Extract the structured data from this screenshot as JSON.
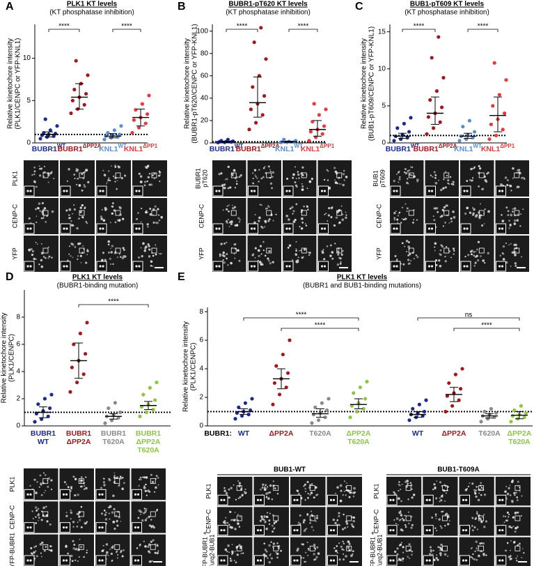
{
  "panels": [
    {
      "letter": "A",
      "title": "PLK1 KT levels",
      "subtitle": "(KT phosphatase inhibition)",
      "ylabel": [
        "Relative kinetochore intensity",
        "(PLK1/CENPC or YFP-KNL1)"
      ],
      "ylim": [
        0,
        14
      ],
      "yticks": [
        0,
        5,
        10
      ],
      "threshold": 1,
      "groups": [
        {
          "name": "BUBR1",
          "sup": "WT",
          "color": "#1b2a8c",
          "mean": 1.0,
          "sd": [
            0.7,
            1.3
          ],
          "points": [
            0.5,
            0.7,
            0.8,
            0.9,
            1.0,
            1.1,
            1.2,
            1.5,
            2.0,
            2.8
          ]
        },
        {
          "name": "BUBR1",
          "sup": "ΔPP2A",
          "color": "#a3181e",
          "mean": 5.4,
          "sd": [
            4.0,
            7.0
          ],
          "points": [
            3.5,
            4.0,
            4.5,
            5.0,
            5.4,
            5.8,
            6.3,
            7.0,
            8.0,
            9.7
          ]
        },
        {
          "name": "KNL1",
          "sup": "WT",
          "color": "#5b8ed1",
          "mean": 0.8,
          "sd": [
            0.6,
            1.1
          ],
          "points": [
            0.4,
            0.6,
            0.7,
            0.8,
            0.9,
            1.0,
            1.2,
            1.5,
            2.0
          ]
        },
        {
          "name": "KNL1",
          "sup": "ΔPP1",
          "color": "#e8383b",
          "mean": 3.0,
          "sd": [
            2.0,
            4.0
          ],
          "points": [
            1.2,
            1.8,
            2.3,
            2.7,
            3.0,
            3.4,
            3.9,
            4.6,
            5.6
          ]
        }
      ],
      "significance": [
        {
          "from": 0,
          "to": 1,
          "label": "****"
        },
        {
          "from": 2,
          "to": 3,
          "label": "****"
        }
      ],
      "image_rows": [
        [
          "PLK1"
        ],
        [
          "CENP-C"
        ],
        [
          "YFP"
        ]
      ]
    },
    {
      "letter": "B",
      "title": "BUBR1-pT620 KT levels",
      "subtitle": "(KT phosphatase inhibition)",
      "ylabel": [
        "Relative kinetochore intensity",
        "(BUBR1-pT620/CENPC or YFP-KNL1)"
      ],
      "ylim": [
        0,
        106
      ],
      "yticks": [
        0,
        20,
        40,
        60,
        80,
        100
      ],
      "threshold": 1,
      "groups": [
        {
          "name": "BUBR1",
          "sup": "WT",
          "color": "#1b2a8c",
          "mean": 1,
          "sd": [
            0.5,
            1.5
          ],
          "points": [
            0.3,
            0.5,
            0.8,
            1,
            1.2,
            1.5,
            2,
            3
          ]
        },
        {
          "name": "BUBR1",
          "sup": "ΔPP2A",
          "color": "#a3181e",
          "mean": 36,
          "sd": [
            23,
            59
          ],
          "points": [
            12,
            18,
            25,
            30,
            35,
            42,
            50,
            60,
            75,
            90,
            103
          ]
        },
        {
          "name": "KNL1",
          "sup": "WT",
          "color": "#5b8ed1",
          "mean": 1,
          "sd": [
            0.5,
            1.5
          ],
          "points": [
            0.3,
            0.5,
            0.8,
            1,
            1.3,
            2,
            3
          ]
        },
        {
          "name": "KNL1",
          "sup": "ΔPP1",
          "color": "#e8383b",
          "mean": 12,
          "sd": [
            6,
            20
          ],
          "points": [
            2,
            5,
            8,
            10,
            12,
            15,
            19,
            25,
            30,
            35
          ]
        }
      ],
      "significance": [
        {
          "from": 0,
          "to": 1,
          "label": "****"
        },
        {
          "from": 2,
          "to": 3,
          "label": "****"
        }
      ],
      "image_rows": [
        [
          "BUBR1",
          "pT620"
        ],
        [
          "CENP-C"
        ],
        [
          "YFP"
        ]
      ]
    },
    {
      "letter": "C",
      "title": "BUB1-pT609 KT levels",
      "subtitle": "(KT phosphatase inhibition)",
      "ylabel": [
        "Relative kinetochore intensity",
        "(BUB1-pT609/CENPC or YFP-KNL1)"
      ],
      "ylim": [
        0,
        16
      ],
      "yticks": [
        0,
        5,
        10,
        15
      ],
      "threshold": 1,
      "groups": [
        {
          "name": "BUBR1",
          "sup": "WT",
          "color": "#1b2a8c",
          "mean": 0.9,
          "sd": [
            0.6,
            1.3
          ],
          "points": [
            0.3,
            0.5,
            0.7,
            0.9,
            1.1,
            1.5,
            2.0,
            2.6,
            3.4
          ]
        },
        {
          "name": "BUBR1",
          "sup": "ΔPP2A",
          "color": "#a3181e",
          "mean": 4,
          "sd": [
            2.5,
            6.2
          ],
          "points": [
            1.2,
            2,
            2.8,
            3.5,
            4,
            4.8,
            5.8,
            7,
            8.8,
            11.5,
            14.3
          ]
        },
        {
          "name": "KNL1",
          "sup": "WT",
          "color": "#5b8ed1",
          "mean": 0.9,
          "sd": [
            0.6,
            1.3
          ],
          "points": [
            0.3,
            0.5,
            0.7,
            0.9,
            1.1,
            1.5,
            2.2,
            3
          ]
        },
        {
          "name": "KNL1",
          "sup": "ΔPP1",
          "color": "#e8383b",
          "mean": 3.7,
          "sd": [
            1.5,
            6.2
          ],
          "points": [
            0.5,
            1,
            1.8,
            2.5,
            3.2,
            4,
            5,
            6.5,
            8.5,
            10.8
          ]
        }
      ],
      "significance": [
        {
          "from": 0,
          "to": 1,
          "label": "****"
        },
        {
          "from": 2,
          "to": 3,
          "label": "****"
        }
      ],
      "image_rows": [
        [
          "BUB1",
          "pT609"
        ],
        [
          "CENP-C"
        ],
        [
          "YFP"
        ]
      ]
    },
    {
      "letter": "D",
      "title": "PLK1 KT levels",
      "subtitle": "(BUBR1-binding mutation)",
      "ylabel": [
        "Relative kinetochore intensity",
        "(PLK1/CENPC)"
      ],
      "ylim": [
        0,
        10
      ],
      "yticks": [
        0,
        2,
        4,
        6,
        8
      ],
      "threshold": 1,
      "groups": [
        {
          "lines": [
            "BUBR1",
            "WT"
          ],
          "color": "#1b2a8c",
          "mean": 1.0,
          "sd": [
            0.6,
            1.4
          ],
          "points": [
            0.3,
            0.5,
            0.7,
            0.9,
            1.1,
            1.3,
            1.6,
            2,
            2.3
          ]
        },
        {
          "lines": [
            "BUBR1",
            "ΔPP2A"
          ],
          "color": "#a3181e",
          "mean": 4.8,
          "sd": [
            3.5,
            6.1
          ],
          "points": [
            2.5,
            3.2,
            3.8,
            4.3,
            4.8,
            5.3,
            6,
            6.8,
            7.6
          ]
        },
        {
          "lines": [
            "BUBR1",
            "T620A"
          ],
          "color": "#8a8a8a",
          "mean": 0.7,
          "sd": [
            0.5,
            0.9
          ],
          "points": [
            0.2,
            0.4,
            0.6,
            0.7,
            0.8,
            1,
            1.3,
            1.7
          ]
        },
        {
          "lines": [
            "BUBR1",
            "ΔPP2A",
            "T620A"
          ],
          "color": "#8dc63f",
          "mean": 1.5,
          "sd": [
            1.2,
            1.8
          ],
          "points": [
            0.7,
            1,
            1.2,
            1.4,
            1.6,
            1.9,
            2.3,
            2.8,
            3.2
          ]
        }
      ],
      "significance": [
        {
          "from": 1,
          "to": 3,
          "label": "****"
        }
      ],
      "image_rows": [
        [
          "PLK1"
        ],
        [
          "CENP-C"
        ],
        [
          "YFP-BUBR1"
        ]
      ]
    },
    {
      "letter": "E",
      "title": "PLK1 KT levels",
      "subtitle": "(BUBR1 and BUB1-binding mutations)",
      "ylabel": [
        "Relative kinetochore intensity",
        "(PLK1/CENPC)"
      ],
      "ylim": [
        0,
        8.3
      ],
      "yticks": [
        0,
        2,
        4,
        6,
        8
      ],
      "threshold": 1,
      "group_prefix": "BUBR1:",
      "groups": [
        {
          "lines": [
            "WT"
          ],
          "color": "#1b2a8c",
          "mean": 1.0,
          "sd": [
            0.8,
            1.2
          ],
          "points": [
            0.5,
            0.7,
            0.8,
            0.9,
            1,
            1.1,
            1.3,
            1.6,
            1.9
          ]
        },
        {
          "lines": [
            "ΔPP2A"
          ],
          "color": "#a3181e",
          "mean": 3.3,
          "sd": [
            2.6,
            4.0
          ],
          "points": [
            1.5,
            2.2,
            2.7,
            3,
            3.3,
            3.7,
            4.2,
            5,
            6
          ]
        },
        {
          "lines": [
            "T620A"
          ],
          "color": "#8a8a8a",
          "mean": 0.85,
          "sd": [
            0.6,
            1.2
          ],
          "points": [
            0.2,
            0.4,
            0.6,
            0.8,
            0.9,
            1.1,
            1.3,
            1.6,
            1.9
          ]
        },
        {
          "lines": [
            "ΔPP2A",
            "T620A"
          ],
          "color": "#8dc63f",
          "mean": 1.5,
          "sd": [
            1.2,
            1.9
          ],
          "points": [
            0.6,
            1,
            1.2,
            1.4,
            1.6,
            1.9,
            2.3,
            2.7,
            3.1
          ]
        },
        {
          "lines": [
            "WT"
          ],
          "color": "#1b2a8c",
          "mean": 0.8,
          "sd": [
            0.6,
            1.0
          ],
          "points": [
            0.4,
            0.6,
            0.7,
            0.8,
            0.9,
            1,
            1.2,
            1.5,
            1.8
          ]
        },
        {
          "lines": [
            "ΔPP2A"
          ],
          "color": "#a3181e",
          "mean": 2.2,
          "sd": [
            1.7,
            2.7
          ],
          "points": [
            1,
            1.4,
            1.8,
            2.1,
            2.3,
            2.6,
            3,
            3.6,
            4
          ]
        },
        {
          "lines": [
            "T620A"
          ],
          "color": "#8a8a8a",
          "mean": 0.7,
          "sd": [
            0.55,
            0.85
          ],
          "points": [
            0.3,
            0.5,
            0.6,
            0.7,
            0.8,
            0.9,
            1,
            1.2
          ]
        },
        {
          "lines": [
            "ΔPP2A",
            "T620A"
          ],
          "color": "#8dc63f",
          "mean": 0.75,
          "sd": [
            0.5,
            1.0
          ],
          "points": [
            0.3,
            0.5,
            0.6,
            0.7,
            0.8,
            0.9,
            1.1,
            1.4
          ]
        }
      ],
      "significance": [
        {
          "from": 0,
          "to": 3,
          "label": "****"
        },
        {
          "from": 1,
          "to": 3,
          "label": "****"
        },
        {
          "from": 4,
          "to": 7,
          "label": "ns"
        },
        {
          "from": 5,
          "to": 7,
          "label": "****"
        }
      ],
      "image_blocks": [
        "BUB1-WT",
        "BUB1-T609A"
      ],
      "image_rows": [
        [
          "PLK1"
        ],
        [
          "CENP-C"
        ],
        [
          "YFP-BUBR1 +",
          "Turq2-BUB1"
        ]
      ]
    }
  ]
}
